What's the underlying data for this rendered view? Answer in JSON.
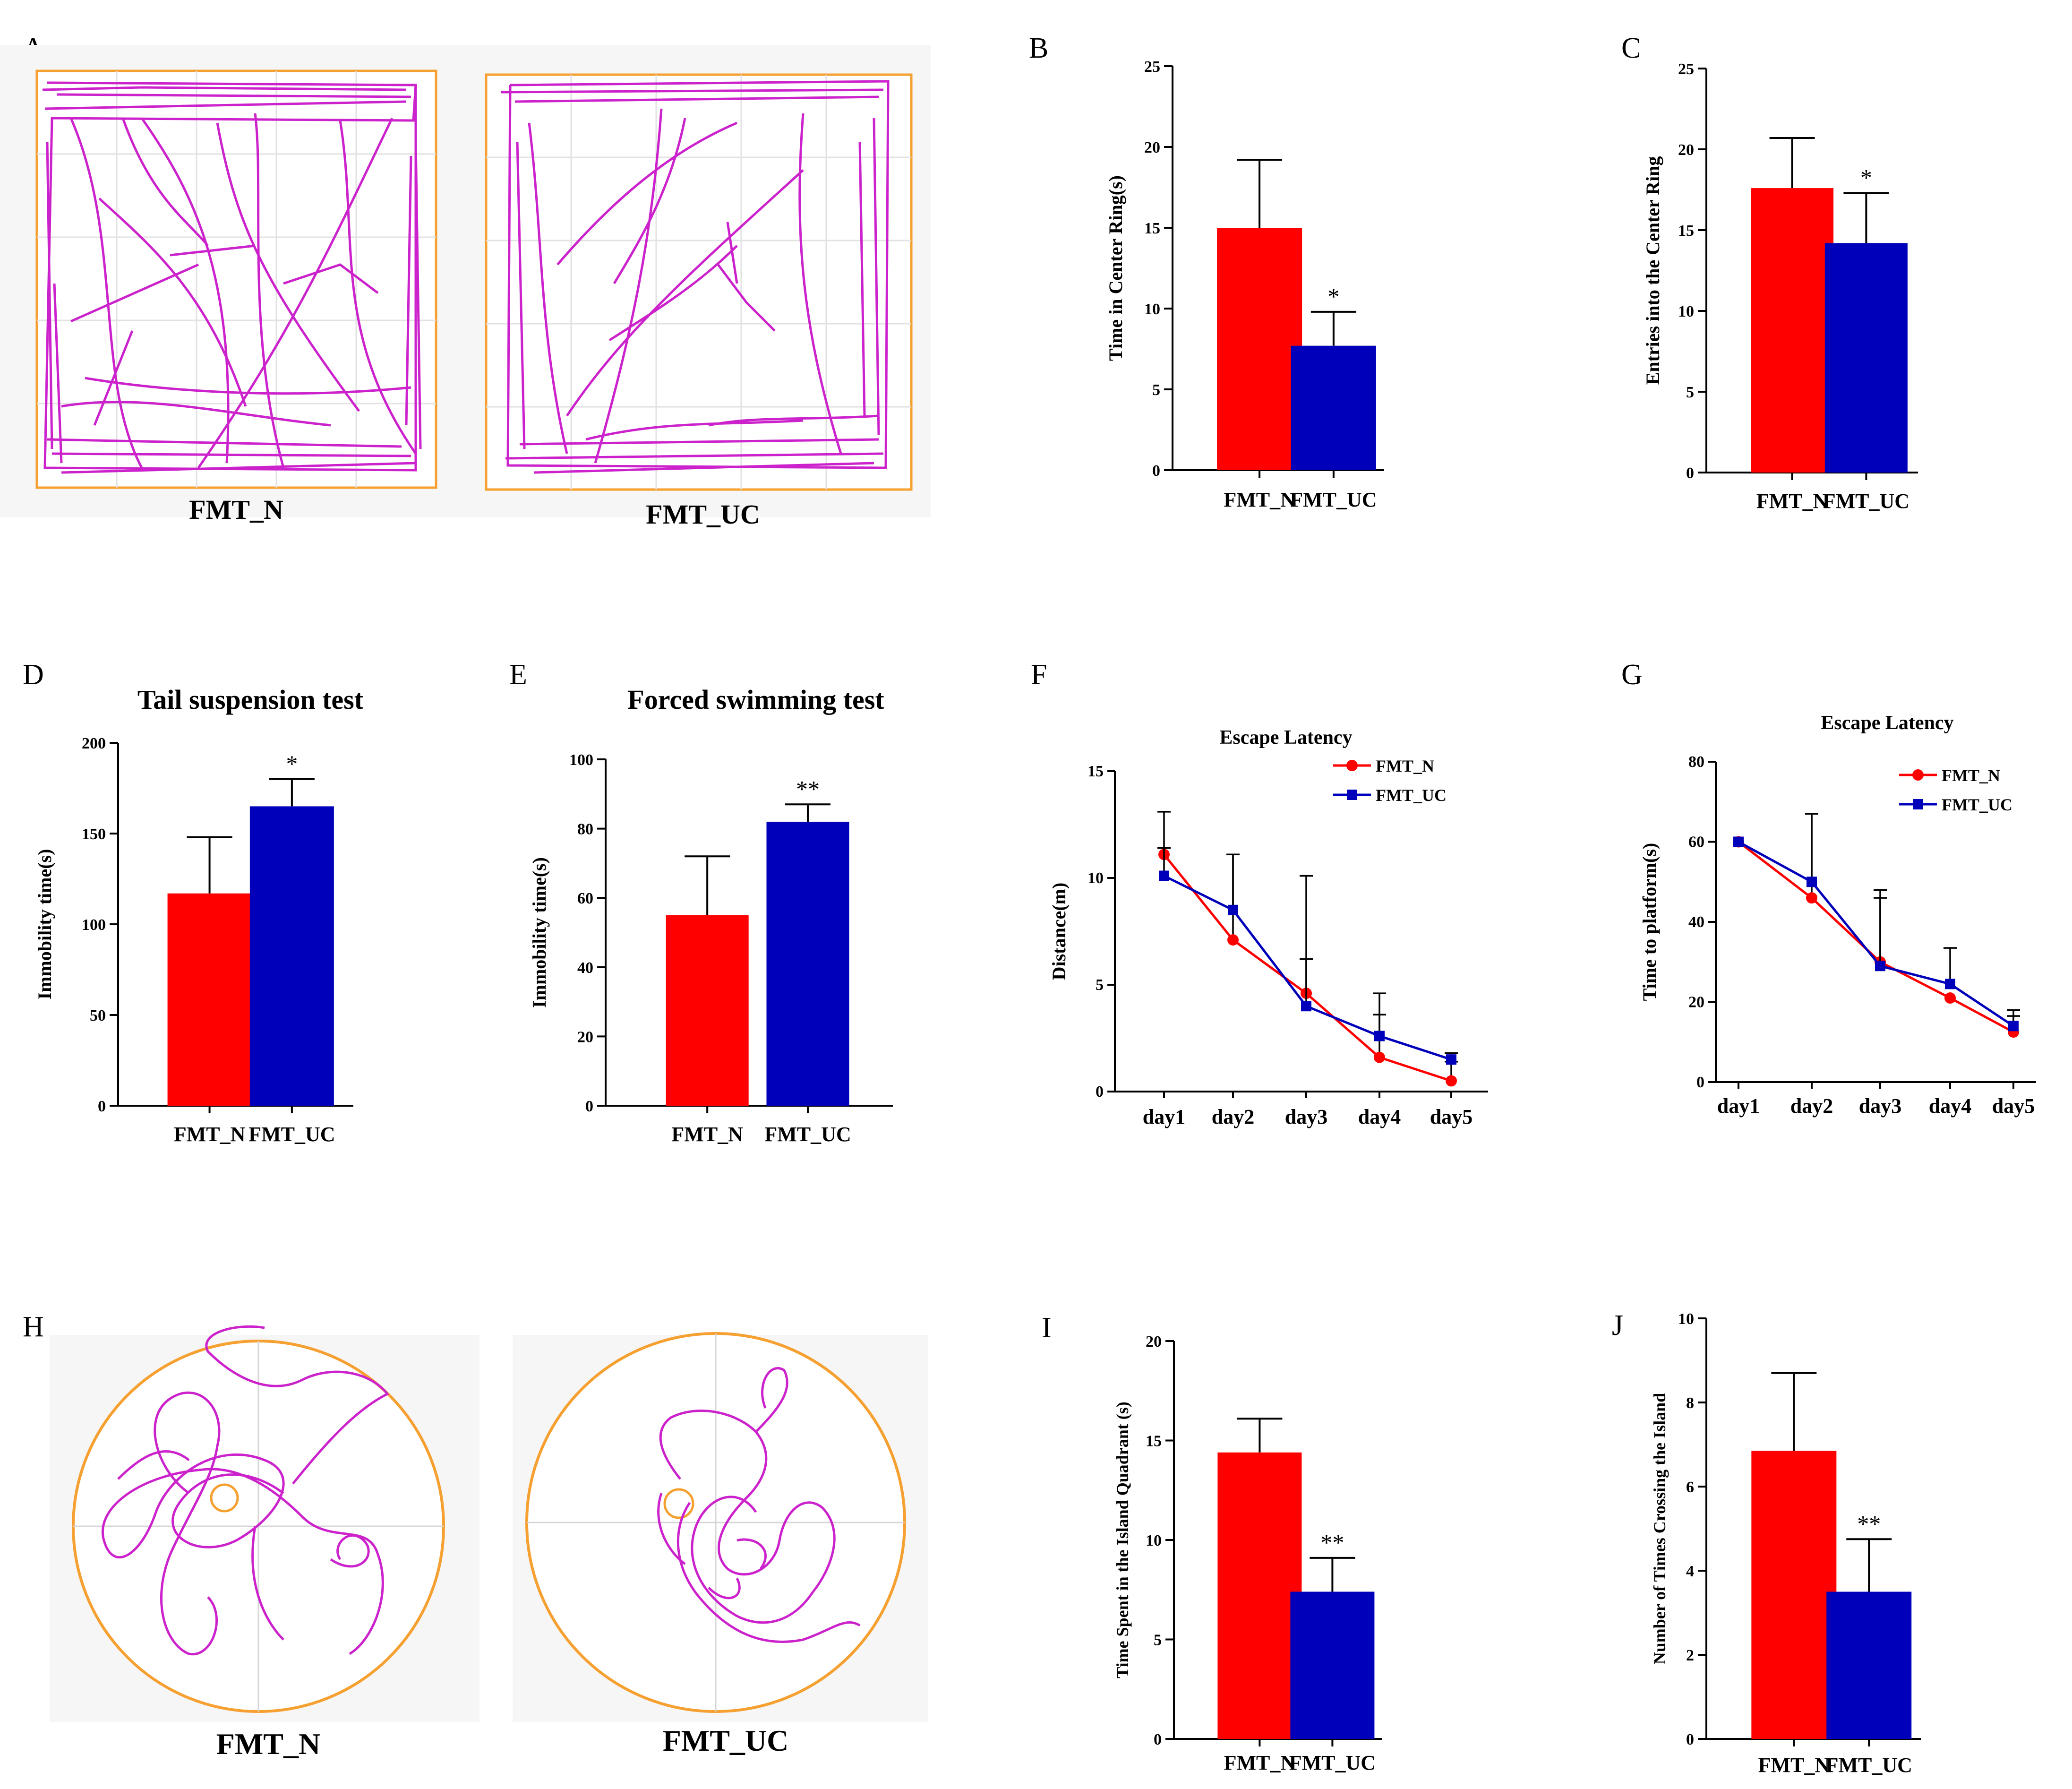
{
  "colors": {
    "red": "#ff0000",
    "blue": "#0000bb",
    "track": "#cc22cc",
    "arena": "#f5a030",
    "grid": "#d0d0d0"
  },
  "panels": {
    "A": {
      "label": "A",
      "tracks": [
        "FMT_N",
        "FMT_UC"
      ]
    },
    "H": {
      "label": "H",
      "tracks": [
        "FMT_N",
        "FMT_UC"
      ]
    }
  },
  "chart_data": [
    {
      "id": "B",
      "label": "B",
      "type": "bar",
      "title": "",
      "ylabel": "Time in Center Ring(s)",
      "ylim": [
        0,
        25
      ],
      "yticks": [
        "0",
        "5",
        "10",
        "15",
        "20",
        "25"
      ],
      "categories": [
        "FMT_N",
        "FMT_UC"
      ],
      "values": [
        15.0,
        7.7
      ],
      "errors": [
        4.2,
        2.1
      ],
      "sig": [
        "",
        "*"
      ]
    },
    {
      "id": "C",
      "label": "C",
      "type": "bar",
      "title": "",
      "ylabel": "Entries into the Center Ring",
      "ylim": [
        0,
        25
      ],
      "yticks": [
        "0",
        "5",
        "10",
        "15",
        "20",
        "25"
      ],
      "categories": [
        "FMT_N",
        "FMT_UC"
      ],
      "values": [
        17.6,
        14.2
      ],
      "errors": [
        3.1,
        3.1
      ],
      "sig": [
        "",
        "*"
      ]
    },
    {
      "id": "D",
      "label": "D",
      "type": "bar",
      "title": "Tail suspension test",
      "ylabel": "Immobility time(s)",
      "ylim": [
        0,
        200
      ],
      "yticks": [
        "0",
        "50",
        "100",
        "150",
        "200"
      ],
      "categories": [
        "FMT_N",
        "FMT_UC"
      ],
      "values": [
        117,
        165
      ],
      "errors": [
        31,
        15
      ],
      "sig": [
        "",
        "*"
      ]
    },
    {
      "id": "E",
      "label": "E",
      "type": "bar",
      "title": "Forced swimming test",
      "ylabel": "Immobility time(s)",
      "ylim": [
        0,
        100
      ],
      "yticks": [
        "0",
        "20",
        "40",
        "60",
        "80",
        "100"
      ],
      "categories": [
        "FMT_N",
        "FMT_UC"
      ],
      "values": [
        55,
        82
      ],
      "errors": [
        17,
        5
      ],
      "sig": [
        "",
        "**"
      ]
    },
    {
      "id": "F",
      "label": "F",
      "type": "line",
      "title": "Escape Latency",
      "ylabel": "Distance(m)",
      "ylim": [
        0,
        15
      ],
      "yticks": [
        "0",
        "5",
        "10",
        "15"
      ],
      "categories": [
        "day1",
        "day2",
        "day3",
        "day4",
        "day5"
      ],
      "series": [
        {
          "name": "FMT_N",
          "values": [
            11.1,
            7.1,
            4.6,
            1.6,
            0.5
          ],
          "errors": [
            2.0,
            4.0,
            5.5,
            2.0,
            0.9
          ]
        },
        {
          "name": "FMT_UC",
          "values": [
            10.1,
            8.5,
            4.0,
            2.6,
            1.5
          ],
          "errors": [
            1.3,
            2.6,
            2.2,
            2.0,
            0.3
          ]
        }
      ]
    },
    {
      "id": "G",
      "label": "G",
      "type": "line",
      "title": "Escape Latency",
      "ylabel": "Time to platform(s)",
      "ylim": [
        0,
        80
      ],
      "yticks": [
        "0",
        "20",
        "40",
        "60",
        "80"
      ],
      "categories": [
        "day1",
        "day2",
        "day3",
        "day4",
        "day5"
      ],
      "series": [
        {
          "name": "FMT_N",
          "values": [
            60,
            46,
            30,
            21,
            12.5
          ],
          "errors": [
            0,
            21,
            16,
            0,
            4
          ]
        },
        {
          "name": "FMT_UC",
          "values": [
            60,
            50,
            29,
            24.5,
            14
          ],
          "errors": [
            0,
            17,
            19,
            9,
            4
          ]
        }
      ]
    },
    {
      "id": "I",
      "label": "I",
      "type": "bar",
      "title": "",
      "ylabel": "Time Spent in the Island Quadrant (s)",
      "ylim": [
        0,
        20
      ],
      "yticks": [
        "0",
        "5",
        "10",
        "15",
        "20"
      ],
      "categories": [
        "FMT_N",
        "FMT_UC"
      ],
      "values": [
        14.4,
        7.4
      ],
      "errors": [
        1.7,
        1.7
      ],
      "sig": [
        "",
        "**"
      ]
    },
    {
      "id": "J",
      "label": "J",
      "type": "bar",
      "title": "",
      "ylabel": "Number of Times Crossing the Island",
      "ylim": [
        0,
        10
      ],
      "yticks": [
        "0",
        "2",
        "4",
        "6",
        "8",
        "10"
      ],
      "categories": [
        "FMT_N",
        "FMT_UC"
      ],
      "values": [
        6.85,
        3.5
      ],
      "errors": [
        1.85,
        1.25
      ],
      "sig": [
        "",
        "**"
      ]
    }
  ]
}
